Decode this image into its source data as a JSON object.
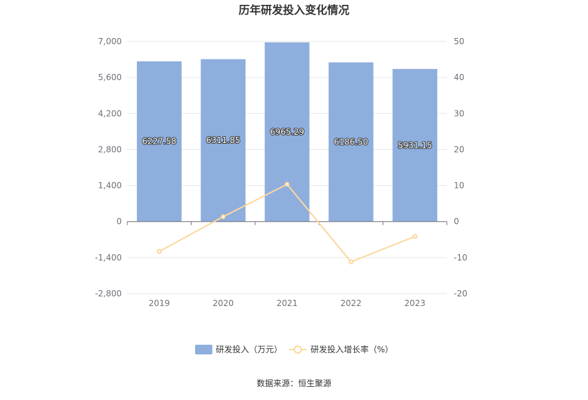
{
  "chart_data": {
    "type": "bar",
    "title": "历年研发投入变化情况",
    "categories": [
      "2019",
      "2020",
      "2021",
      "2022",
      "2023"
    ],
    "series": [
      {
        "name": "研发投入（万元）",
        "type": "bar",
        "axis": "left",
        "color": "#8eaedd",
        "values": [
          6227.58,
          6311.85,
          6965.29,
          6186.5,
          5931.15
        ],
        "labels": [
          "6227.58",
          "6311.85",
          "6965.29",
          "6186.50",
          "5931.15"
        ]
      },
      {
        "name": "研发投入增长率（%）",
        "type": "line",
        "axis": "right",
        "color": "#fcd79c",
        "values": [
          -8.3,
          1.35,
          10.36,
          -11.18,
          -4.13
        ]
      }
    ],
    "y_left": {
      "min": -2800,
      "max": 7000,
      "ticks": [
        "7,000",
        "5,600",
        "4,200",
        "2,800",
        "1,400",
        "0",
        "-1,400",
        "-2,800"
      ]
    },
    "y_right": {
      "min": -20,
      "max": 50,
      "ticks": [
        "50",
        "40",
        "30",
        "20",
        "10",
        "0",
        "-10",
        "-20"
      ]
    },
    "grid": true,
    "legend_position": "bottom"
  },
  "source_text": "数据来源：恒生聚源"
}
